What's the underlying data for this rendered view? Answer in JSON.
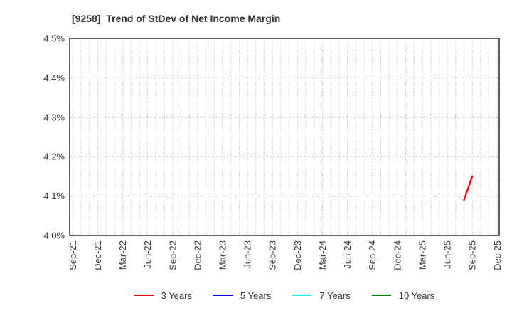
{
  "title": "[9258]  Trend of StDev of Net Income Margin",
  "chart_data": {
    "type": "line",
    "title": "[9258]  Trend of StDev of Net Income Margin",
    "xlabel": "",
    "ylabel": "",
    "ylim": [
      4.0,
      4.5
    ],
    "y_tick_step": 0.1,
    "y_ticks": [
      {
        "value": 4.0,
        "label": "4.0%"
      },
      {
        "value": 4.1,
        "label": "4.1%"
      },
      {
        "value": 4.2,
        "label": "4.2%"
      },
      {
        "value": 4.3,
        "label": "4.3%"
      },
      {
        "value": 4.4,
        "label": "4.4%"
      },
      {
        "value": 4.5,
        "label": "4.5%"
      }
    ],
    "x_axis": {
      "unit": "month",
      "start": "Sep-21",
      "end": "Dec-25",
      "label_every_months": 3,
      "tick_labels": [
        "Sep-21",
        "Dec-21",
        "Mar-22",
        "Jun-22",
        "Sep-22",
        "Dec-22",
        "Mar-23",
        "Jun-23",
        "Sep-23",
        "Dec-23",
        "Mar-24",
        "Jun-24",
        "Sep-24",
        "Dec-24",
        "Mar-25",
        "Jun-25",
        "Sep-25",
        "Dec-25"
      ],
      "label_rotation_deg": -90
    },
    "grid": {
      "vertical": "every-month-dotted",
      "horizontal": "every-0.1-dashed",
      "color": "#ababab"
    },
    "series": [
      {
        "name": "3 Years",
        "color": "#ff0000",
        "points": [
          {
            "month": "Aug-25",
            "value": 4.09
          },
          {
            "month": "Sep-25",
            "value": 4.15
          }
        ]
      },
      {
        "name": "5 Years",
        "color": "#0000ff",
        "points": []
      },
      {
        "name": "7 Years",
        "color": "#00ffff",
        "points": []
      },
      {
        "name": "10 Years",
        "color": "#008000",
        "points": []
      }
    ],
    "legend_position": "bottom-center"
  },
  "colors": {
    "background": "#ffffff",
    "title": "#333333",
    "tick_label": "#3a3a3a",
    "axis_border": "#2b2b2b",
    "grid": "#ababab"
  }
}
